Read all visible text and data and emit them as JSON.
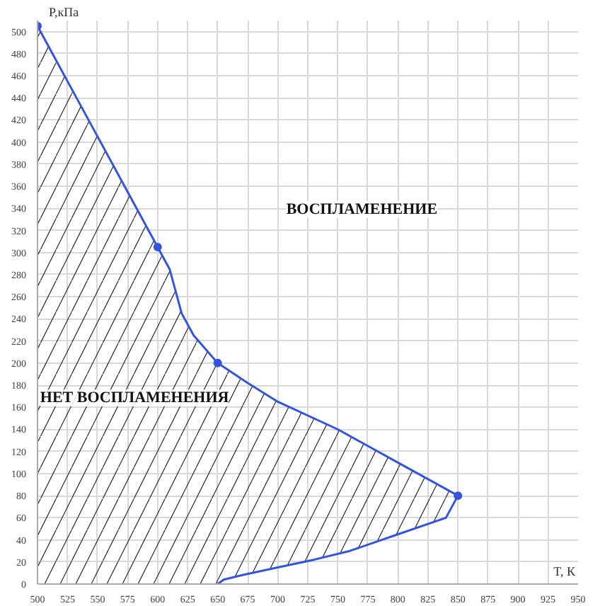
{
  "chart_data": {
    "type": "area",
    "xlabel": "T, К",
    "ylabel": "P,кПа",
    "xlim": [
      500,
      950
    ],
    "ylim": [
      0,
      510
    ],
    "xticks": [
      500,
      525,
      550,
      575,
      600,
      625,
      650,
      675,
      700,
      725,
      750,
      775,
      800,
      825,
      850,
      875,
      900,
      925,
      950
    ],
    "yticks": [
      0,
      20,
      40,
      60,
      80,
      100,
      120,
      140,
      160,
      180,
      200,
      220,
      240,
      260,
      280,
      300,
      320,
      340,
      360,
      380,
      400,
      420,
      440,
      460,
      480,
      500
    ],
    "grid": true,
    "marker": "none",
    "line_style": "solid",
    "series": [
      {
        "color": "#3355dd",
        "x": [
          500,
          525,
          550,
          575,
          600,
          610,
          615,
          620,
          630,
          650,
          675,
          700,
          750,
          800,
          830,
          850,
          840,
          800,
          760,
          730,
          700,
          670,
          655,
          650
        ],
        "values": [
          505,
          455,
          405,
          355,
          305,
          285,
          265,
          245,
          225,
          200,
          182,
          165,
          140,
          110,
          92,
          80,
          60,
          45,
          30,
          22,
          15,
          8,
          4,
          0
        ]
      },
      {
        "type": "scatter",
        "marker": "circle",
        "color": "#3355dd",
        "x": [
          500,
          600,
          650,
          850
        ],
        "values": [
          505,
          305,
          200,
          80
        ]
      }
    ],
    "annotations": [
      "ВОСПЛАМЕНЕНИЕ",
      "НЕТ ВОСПЛАМЕНЕНИЯ"
    ]
  }
}
